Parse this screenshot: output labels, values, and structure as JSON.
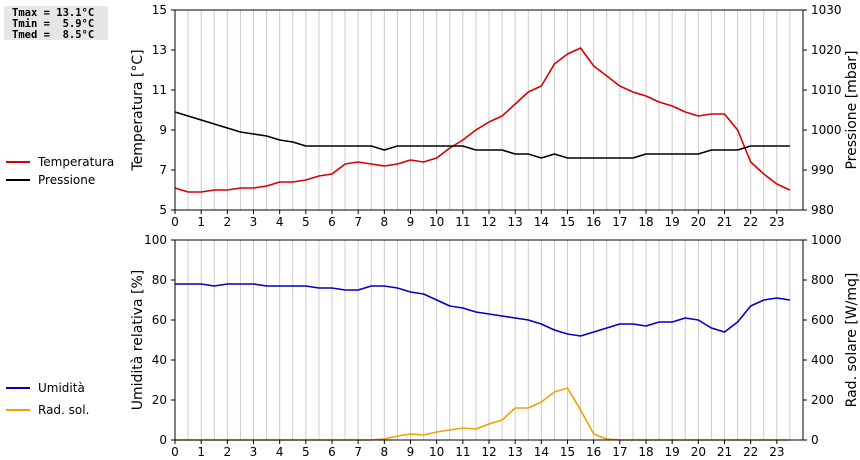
{
  "stats": {
    "tmax": "Tmax = 13.1°C",
    "tmin": "Tmin =  5.9°C",
    "tmed": "Tmed =  8.5°C"
  },
  "colors": {
    "temperature": "#d80000",
    "pressure": "#000000",
    "humidity": "#0000c0",
    "solar": "#f0a000",
    "grid": "#cccccc"
  },
  "chart_data": [
    {
      "type": "line",
      "x_ticks": [
        "0",
        "1",
        "2",
        "3",
        "4",
        "5",
        "6",
        "7",
        "8",
        "9",
        "10",
        "11",
        "12",
        "13",
        "14",
        "15",
        "16",
        "17",
        "18",
        "19",
        "20",
        "21",
        "22",
        "23"
      ],
      "xlim": [
        0,
        24
      ],
      "left_axis": {
        "label": "Temperatura [°C]",
        "ylim": [
          5,
          15
        ],
        "ticks": [
          "5",
          "7",
          "9",
          "11",
          "13",
          "15"
        ]
      },
      "right_axis": {
        "label": "Pressione [mbar]",
        "ylim": [
          980,
          1030
        ],
        "ticks": [
          "980",
          "990",
          "1000",
          "1010",
          "1020",
          "1030"
        ]
      },
      "legend": "left",
      "series": [
        {
          "name": "Temperatura",
          "axis": "left",
          "x": [
            0,
            0.5,
            1,
            1.5,
            2,
            2.5,
            3,
            3.5,
            4,
            4.5,
            5,
            5.5,
            6,
            6.5,
            7,
            7.5,
            8,
            8.5,
            9,
            9.5,
            10,
            10.5,
            11,
            11.5,
            12,
            12.5,
            13,
            13.5,
            14,
            14.5,
            15,
            15.5,
            16,
            16.5,
            17,
            17.5,
            18,
            18.5,
            19,
            19.5,
            20,
            20.5,
            21,
            21.5,
            22,
            22.5,
            23,
            23.5
          ],
          "y": [
            6.1,
            5.9,
            5.9,
            6.0,
            6.0,
            6.1,
            6.1,
            6.2,
            6.4,
            6.4,
            6.5,
            6.7,
            6.8,
            7.3,
            7.4,
            7.3,
            7.2,
            7.3,
            7.5,
            7.4,
            7.6,
            8.1,
            8.5,
            9.0,
            9.4,
            9.7,
            10.3,
            10.9,
            11.2,
            12.3,
            12.8,
            13.1,
            12.2,
            11.7,
            11.2,
            10.9,
            10.7,
            10.4,
            10.2,
            9.9,
            9.7,
            9.8,
            9.8,
            9.0,
            7.4,
            6.8,
            6.3,
            6.0
          ]
        },
        {
          "name": "Pressione",
          "axis": "right",
          "x": [
            0,
            0.5,
            1,
            1.5,
            2,
            2.5,
            3,
            3.5,
            4,
            4.5,
            5,
            5.5,
            6,
            6.5,
            7,
            7.5,
            8,
            8.5,
            9,
            9.5,
            10,
            10.5,
            11,
            11.5,
            12,
            12.5,
            13,
            13.5,
            14,
            14.5,
            15,
            15.5,
            16,
            16.5,
            17,
            17.5,
            18,
            18.5,
            19,
            19.5,
            20,
            20.5,
            21,
            21.5,
            22,
            22.5,
            23,
            23.5
          ],
          "y": [
            1004.5,
            1003.5,
            1002.5,
            1001.5,
            1000.5,
            999.5,
            999,
            998.5,
            997.5,
            997,
            996,
            996,
            996,
            996,
            996,
            996,
            995,
            996,
            996,
            996,
            996,
            996,
            996,
            995,
            995,
            995,
            994,
            994,
            993,
            994,
            993,
            993,
            993,
            993,
            993,
            993,
            994,
            994,
            994,
            994,
            994,
            995,
            995,
            995,
            996,
            996,
            996,
            996
          ]
        }
      ]
    },
    {
      "type": "area",
      "x_ticks": [
        "0",
        "1",
        "2",
        "3",
        "4",
        "5",
        "6",
        "7",
        "8",
        "9",
        "10",
        "11",
        "12",
        "13",
        "14",
        "15",
        "16",
        "17",
        "18",
        "19",
        "20",
        "21",
        "22",
        "23"
      ],
      "xlim": [
        0,
        24
      ],
      "left_axis": {
        "label": "Umidità relativa [%]",
        "ylim": [
          0,
          100
        ],
        "ticks": [
          "0",
          "20",
          "40",
          "60",
          "80",
          "100"
        ]
      },
      "right_axis": {
        "label": "Rad. solare [W/mq]",
        "ylim": [
          0,
          1000
        ],
        "ticks": [
          "0",
          "200",
          "400",
          "600",
          "800",
          "1000"
        ]
      },
      "legend": "left",
      "series": [
        {
          "name": "Umidità",
          "axis": "left",
          "x": [
            0,
            0.5,
            1,
            1.5,
            2,
            2.5,
            3,
            3.5,
            4,
            4.5,
            5,
            5.5,
            6,
            6.5,
            7,
            7.5,
            8,
            8.5,
            9,
            9.5,
            10,
            10.5,
            11,
            11.5,
            12,
            12.5,
            13,
            13.5,
            14,
            14.5,
            15,
            15.5,
            16,
            16.5,
            17,
            17.5,
            18,
            18.5,
            19,
            19.5,
            20,
            20.5,
            21,
            21.5,
            22,
            22.5,
            23,
            23.5
          ],
          "y": [
            78,
            78,
            78,
            77,
            78,
            78,
            78,
            77,
            77,
            77,
            77,
            76,
            76,
            75,
            75,
            77,
            77,
            76,
            74,
            73,
            70,
            67,
            66,
            64,
            63,
            62,
            61,
            60,
            58,
            55,
            53,
            52,
            54,
            56,
            58,
            58,
            57,
            59,
            59,
            61,
            60,
            56,
            54,
            59,
            67,
            70,
            71,
            70
          ]
        },
        {
          "name": "Rad. sol.",
          "axis": "right",
          "x": [
            0,
            1,
            2,
            3,
            4,
            5,
            6,
            7,
            7.5,
            8,
            8.5,
            9,
            9.5,
            10,
            10.5,
            11,
            11.5,
            12,
            12.5,
            13,
            13.5,
            14,
            14.5,
            15,
            15.5,
            16,
            16.5,
            17,
            18,
            19,
            20,
            21,
            22,
            23,
            23.5
          ],
          "y": [
            0,
            0,
            0,
            0,
            0,
            0,
            0,
            0,
            0,
            5,
            20,
            30,
            25,
            40,
            50,
            60,
            55,
            80,
            100,
            160,
            160,
            190,
            240,
            260,
            150,
            30,
            5,
            0,
            0,
            0,
            0,
            0,
            0,
            0,
            0
          ]
        }
      ]
    }
  ]
}
